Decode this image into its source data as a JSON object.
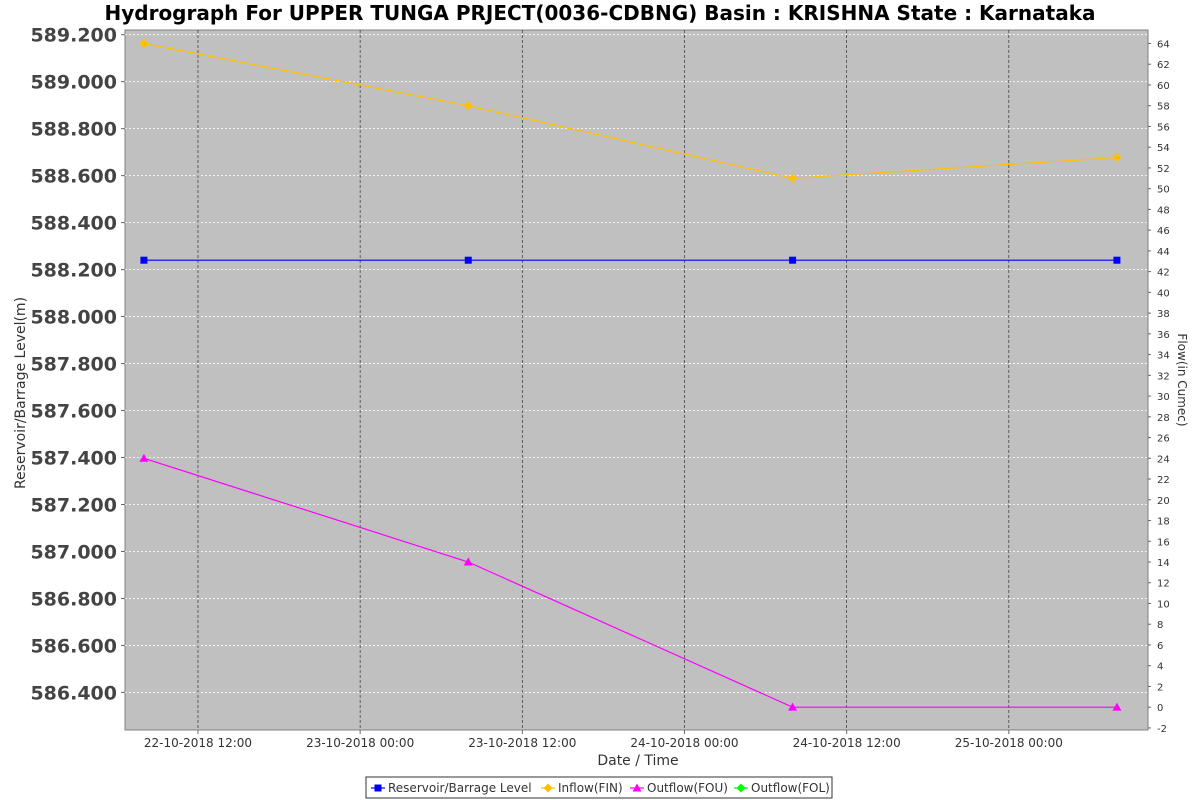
{
  "chart_data": {
    "type": "line",
    "title": "Hydrograph For UPPER TUNGA PRJECT(0036-CDBNG) Basin : KRISHNA State : Karnataka",
    "xlabel": "Date / Time",
    "ylabel_left": "Reservoir/Barrage Level(m)",
    "ylabel_right": "Flow(in Cumec)",
    "x_tick_labels": [
      "22-10-2018 12:00",
      "23-10-2018 00:00",
      "23-10-2018 12:00",
      "24-10-2018 00:00",
      "24-10-2018 12:00",
      "25-10-2018 00:00"
    ],
    "x_tick_hours": [
      12,
      24,
      36,
      48,
      60,
      72
    ],
    "x_points_hours": [
      8,
      32,
      56,
      80
    ],
    "xlim_hours": [
      6.6,
      82.3
    ],
    "y_left_ticks": [
      "586.400",
      "586.600",
      "586.800",
      "587.000",
      "587.200",
      "587.400",
      "587.600",
      "587.800",
      "588.000",
      "588.200",
      "588.400",
      "588.600",
      "588.800",
      "589.000",
      "589.200"
    ],
    "y_left_lim": [
      586.24,
      589.22
    ],
    "y_right_ticks": [
      "-2",
      "0",
      "2",
      "4",
      "6",
      "8",
      "10",
      "12",
      "14",
      "16",
      "18",
      "20",
      "22",
      "24",
      "26",
      "28",
      "30",
      "32",
      "34",
      "36",
      "38",
      "40",
      "42",
      "44",
      "46",
      "48",
      "50",
      "52",
      "54",
      "56",
      "58",
      "60",
      "62",
      "64"
    ],
    "y_right_lim": [
      -2.2,
      65.3
    ],
    "grid": true,
    "legend_position": "bottom",
    "series": [
      {
        "name": "Reservoir/Barrage Level",
        "axis": "left",
        "color": "#0000ff",
        "marker": "square",
        "values": [
          588.24,
          588.24,
          588.24,
          588.24
        ]
      },
      {
        "name": "Inflow(FIN)",
        "axis": "right",
        "color": "#ffc000",
        "marker": "diamond",
        "values": [
          64,
          58,
          51,
          53
        ]
      },
      {
        "name": "Outflow(FOU)",
        "axis": "right",
        "color": "#ff00ff",
        "marker": "triangle",
        "values": [
          24,
          14,
          0,
          0
        ]
      },
      {
        "name": "Outflow(FOL)",
        "axis": "right",
        "color": "#00ff00",
        "marker": "diamond",
        "values": []
      }
    ]
  }
}
